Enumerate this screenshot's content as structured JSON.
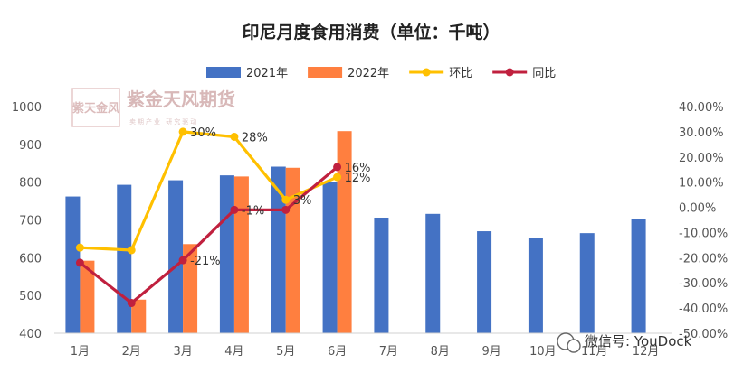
{
  "chart_data": {
    "type": "bar",
    "title": "印尼月度食用消费（单位：千吨）",
    "categories": [
      "1月",
      "2月",
      "3月",
      "4月",
      "5月",
      "6月",
      "7月",
      "8月",
      "9月",
      "10月",
      "11月",
      "12月"
    ],
    "series": [
      {
        "name": "2021年",
        "type": "bar",
        "axis": "left",
        "color": "#4472c4",
        "values": [
          762,
          793,
          805,
          818,
          841,
          800,
          706,
          716,
          670,
          653,
          665,
          703
        ]
      },
      {
        "name": "2022年",
        "type": "bar",
        "axis": "left",
        "color": "#ff7f3f",
        "values": [
          592,
          489,
          636,
          815,
          838,
          935,
          null,
          null,
          null,
          null,
          null,
          null
        ]
      },
      {
        "name": "环比",
        "type": "line",
        "axis": "right",
        "color": "#ffc000",
        "values": [
          -0.16,
          -0.17,
          0.3,
          0.28,
          0.03,
          0.12,
          null,
          null,
          null,
          null,
          null,
          null
        ],
        "labels": [
          "",
          "",
          "30%",
          "28%",
          "3%",
          "12%",
          "",
          "",
          "",
          "",
          "",
          ""
        ]
      },
      {
        "name": "同比",
        "type": "line",
        "axis": "right",
        "color": "#c0203e",
        "values": [
          -0.22,
          -0.38,
          -0.21,
          -0.01,
          -0.01,
          0.16,
          null,
          null,
          null,
          null,
          null,
          null
        ],
        "labels": [
          "",
          "",
          "-21%",
          "-1%",
          "",
          "16%",
          "",
          "",
          "",
          "",
          "",
          ""
        ]
      }
    ],
    "y_left": {
      "min": 400,
      "max": 1000,
      "ticks": [
        1000,
        900,
        800,
        700,
        600,
        500,
        400
      ]
    },
    "y_right": {
      "min": -0.5,
      "max": 0.4,
      "ticks": [
        "40.00%",
        "30.00%",
        "20.00%",
        "10.00%",
        "0.00%",
        "-10.00%",
        "-20.00%",
        "-30.00%",
        "-40.00%",
        "-50.00%"
      ]
    },
    "legend_position": "top",
    "grid": false
  },
  "watermark": {
    "text": "紫金天风期货",
    "sub": "卖期产业 研究驱动",
    "seal": "紫天金风"
  },
  "wechat": {
    "text": "微信号: YouDock"
  }
}
